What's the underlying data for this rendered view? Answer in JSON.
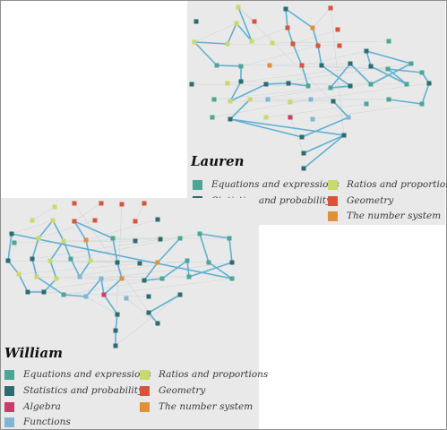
{
  "colors": {
    "equations": "#4aa796",
    "statistics": "#2d6b73",
    "ratios": "#c9d96a",
    "geometry": "#d9533b",
    "number_system": "#e1903a",
    "algebra": "#cf3a6e",
    "functions": "#7fb6d6",
    "path": "#5fb0d2"
  },
  "panels": {
    "lauren": {
      "name": "Lauren",
      "legend": [
        {
          "label": "Equations and expressions",
          "color_key": "equations"
        },
        {
          "label": "Ratios and proportions",
          "color_key": "ratios"
        },
        {
          "label": "Statistics and probability",
          "color_key": "statistics"
        },
        {
          "label": "Geometry",
          "color_key": "geometry"
        },
        {
          "label": "The number system",
          "color_key": "number_system"
        }
      ]
    },
    "william": {
      "name": "William",
      "legend": [
        {
          "label": "Equations and expressions",
          "color_key": "equations"
        },
        {
          "label": "Ratios and proportions",
          "color_key": "ratios"
        },
        {
          "label": "Statistics and probability",
          "color_key": "statistics"
        },
        {
          "label": "Geometry",
          "color_key": "geometry"
        },
        {
          "label": "Algebra",
          "color_key": "algebra"
        },
        {
          "label": "The number system",
          "color_key": "number_system"
        },
        {
          "label": "Functions",
          "color_key": "functions"
        }
      ]
    }
  }
}
